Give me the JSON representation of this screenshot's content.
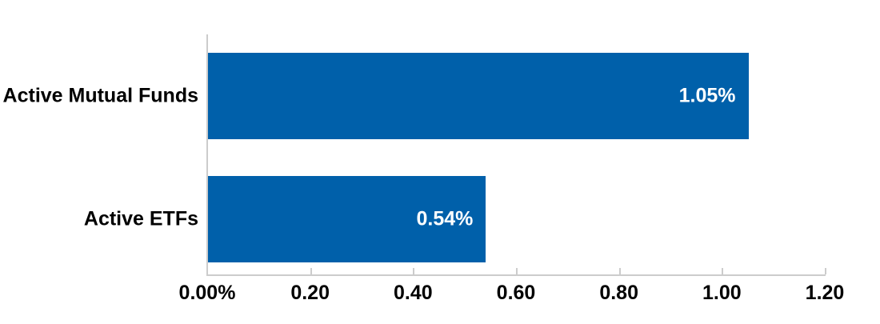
{
  "chart": {
    "colors": {
      "bar": "#0060AA",
      "axis": "#CCCCCC",
      "category_label": "#000000",
      "tick_label": "#000000",
      "value_label": "#FFFFFF",
      "background": "#FFFFFF"
    }
  },
  "chart_data": {
    "type": "bar",
    "orientation": "horizontal",
    "categories": [
      "Active Mutual Funds",
      "Active ETFs"
    ],
    "values": [
      1.05,
      0.54
    ],
    "value_labels": [
      "1.05%",
      "0.54%"
    ],
    "xlim": [
      0,
      1.2
    ],
    "x_ticks": [
      0,
      0.2,
      0.4,
      0.6,
      0.8,
      1.0,
      1.2
    ],
    "x_tick_labels": [
      "0.00%",
      "0.20",
      "0.40",
      "0.60",
      "0.80",
      "1.00",
      "1.20"
    ],
    "grid": false,
    "legend": false,
    "units": "percent"
  }
}
